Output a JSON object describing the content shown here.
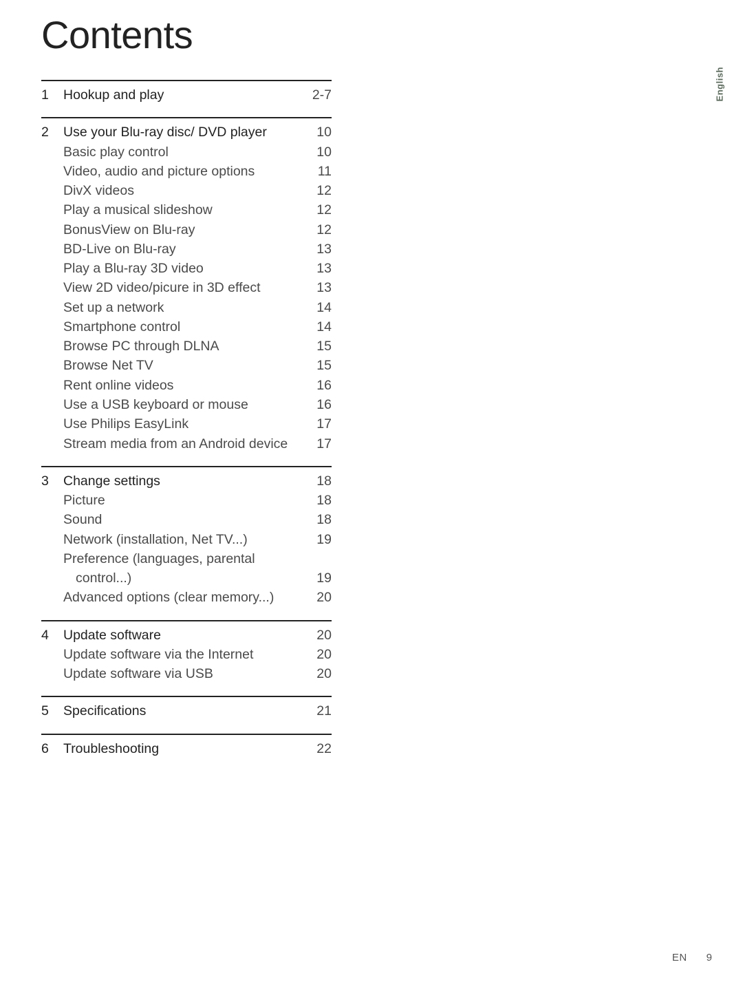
{
  "title": "Contents",
  "side_tab": "English",
  "footer": {
    "lang": "EN",
    "page": "9"
  },
  "toc": [
    {
      "num": "1",
      "head": {
        "label": "Hookup and play",
        "page": "2-7"
      },
      "items": []
    },
    {
      "num": "2",
      "head": {
        "label": "Use your Blu-ray disc/ DVD player",
        "page": "10"
      },
      "items": [
        {
          "label": "Basic play control",
          "page": "10"
        },
        {
          "label": "Video, audio and picture options",
          "page": "11"
        },
        {
          "label": "DivX videos",
          "page": "12"
        },
        {
          "label": "Play a musical slideshow",
          "page": "12"
        },
        {
          "label": "BonusView on Blu-ray",
          "page": "12"
        },
        {
          "label": "BD-Live on Blu-ray",
          "page": "13"
        },
        {
          "label": "Play a Blu-ray 3D video",
          "page": "13"
        },
        {
          "label": "View 2D video/picure in 3D effect",
          "page": "13"
        },
        {
          "label": "Set up a network",
          "page": "14"
        },
        {
          "label": "Smartphone control",
          "page": "14"
        },
        {
          "label": "Browse PC through DLNA",
          "page": "15"
        },
        {
          "label": "Browse Net TV",
          "page": "15"
        },
        {
          "label": "Rent online videos",
          "page": "16"
        },
        {
          "label": "Use a USB keyboard or mouse",
          "page": "16"
        },
        {
          "label": "Use Philips EasyLink",
          "page": "17"
        },
        {
          "label": "Stream media from an Android device",
          "page": "17"
        }
      ]
    },
    {
      "num": "3",
      "head": {
        "label": "Change settings",
        "page": "18"
      },
      "items": [
        {
          "label": "Picture",
          "page": "18"
        },
        {
          "label": "Sound",
          "page": "18"
        },
        {
          "label": "Network (installation, Net TV...)",
          "page": "19"
        },
        {
          "label": "Preference (languages, parental",
          "page": ""
        },
        {
          "label": "control...)",
          "page": "19",
          "continuation": true
        },
        {
          "label": "Advanced options (clear memory...)",
          "page": "20"
        }
      ]
    },
    {
      "num": "4",
      "head": {
        "label": "Update software",
        "page": "20"
      },
      "items": [
        {
          "label": "Update software via the Internet",
          "page": "20"
        },
        {
          "label": "Update software via USB",
          "page": "20"
        }
      ]
    },
    {
      "num": "5",
      "head": {
        "label": "Specifications",
        "page": "21"
      },
      "items": []
    },
    {
      "num": "6",
      "head": {
        "label": "Troubleshooting",
        "page": "22"
      },
      "items": []
    }
  ]
}
